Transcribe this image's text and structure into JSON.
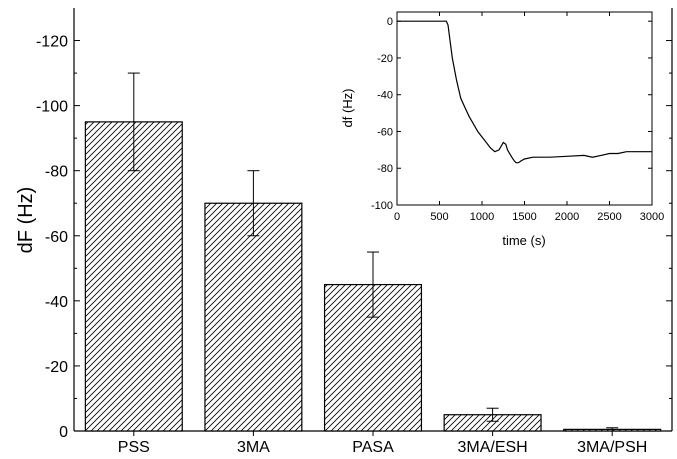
{
  "chart_data": [
    {
      "type": "bar",
      "categories": [
        "PSS",
        "3MA",
        "PASA",
        "3MA/ESH",
        "3MA/PSH"
      ],
      "values": [
        -95,
        -70,
        -45,
        -5,
        -0.5
      ],
      "errors": [
        15,
        10,
        10,
        2,
        0.5
      ],
      "ylabel": "dF (Hz)",
      "xlabel": "",
      "ylim": [
        0,
        -130
      ],
      "yticks": [
        0,
        -20,
        -40,
        -60,
        -80,
        -100,
        -120
      ],
      "ytick_labels": [
        "0",
        "-20",
        "-40",
        "-60",
        "-80",
        "-100",
        "-120"
      ],
      "bar_fill": "diagonal hatch",
      "grid": false
    },
    {
      "type": "line",
      "xlabel": "time (s)",
      "ylabel": "df (Hz)",
      "xlim": [
        0,
        3000
      ],
      "ylim": [
        -100,
        5
      ],
      "xticks": [
        0,
        500,
        1000,
        1500,
        2000,
        2500,
        3000
      ],
      "xtick_labels": [
        "0",
        "500",
        "1000",
        "1500",
        "2000",
        "2500",
        "3000"
      ],
      "yticks": [
        0,
        -20,
        -40,
        -60,
        -80,
        -100
      ],
      "ytick_labels": [
        "0",
        "-20",
        "-40",
        "-60",
        "-80",
        "-100"
      ],
      "x": [
        0,
        100,
        200,
        300,
        400,
        500,
        580,
        600,
        650,
        700,
        750,
        800,
        850,
        900,
        950,
        1000,
        1050,
        1100,
        1150,
        1200,
        1250,
        1280,
        1300,
        1350,
        1380,
        1400,
        1430,
        1460,
        1500,
        1600,
        1700,
        1800,
        2000,
        2200,
        2300,
        2400,
        2500,
        2600,
        2700,
        2800,
        2900,
        3000
      ],
      "y": [
        0,
        0,
        0,
        0,
        0,
        0,
        0,
        -2,
        -20,
        -32,
        -42,
        -47,
        -52,
        -56,
        -60,
        -63,
        -66,
        -69,
        -71,
        -70,
        -66,
        -67,
        -70,
        -74,
        -76,
        -77,
        -77,
        -76,
        -75,
        -74,
        -74,
        -74,
        -73.5,
        -73,
        -74,
        -73,
        -72,
        -72,
        -71,
        -71,
        -71,
        -71
      ],
      "grid": false
    }
  ]
}
